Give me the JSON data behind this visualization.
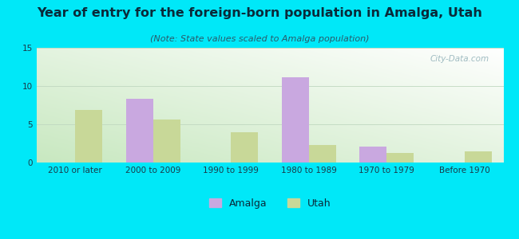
{
  "title": "Year of entry for the foreign-born population in Amalga, Utah",
  "subtitle": "(Note: State values scaled to Amalga population)",
  "categories": [
    "2010 or later",
    "2000 to 2009",
    "1990 to 1999",
    "1980 to 1989",
    "1970 to 1979",
    "Before 1970"
  ],
  "amalga_values": [
    0,
    8.3,
    0,
    11.1,
    2.1,
    0
  ],
  "utah_values": [
    6.9,
    5.6,
    4.0,
    2.3,
    1.2,
    1.5
  ],
  "amalga_color": "#c9a8e0",
  "utah_color": "#c8d898",
  "background_color": "#00e8f8",
  "ylim": [
    0,
    15
  ],
  "yticks": [
    0,
    5,
    10,
    15
  ],
  "bar_width": 0.35,
  "title_fontsize": 11.5,
  "subtitle_fontsize": 8,
  "tick_fontsize": 7.5,
  "legend_fontsize": 9,
  "watermark": "City-Data.com"
}
